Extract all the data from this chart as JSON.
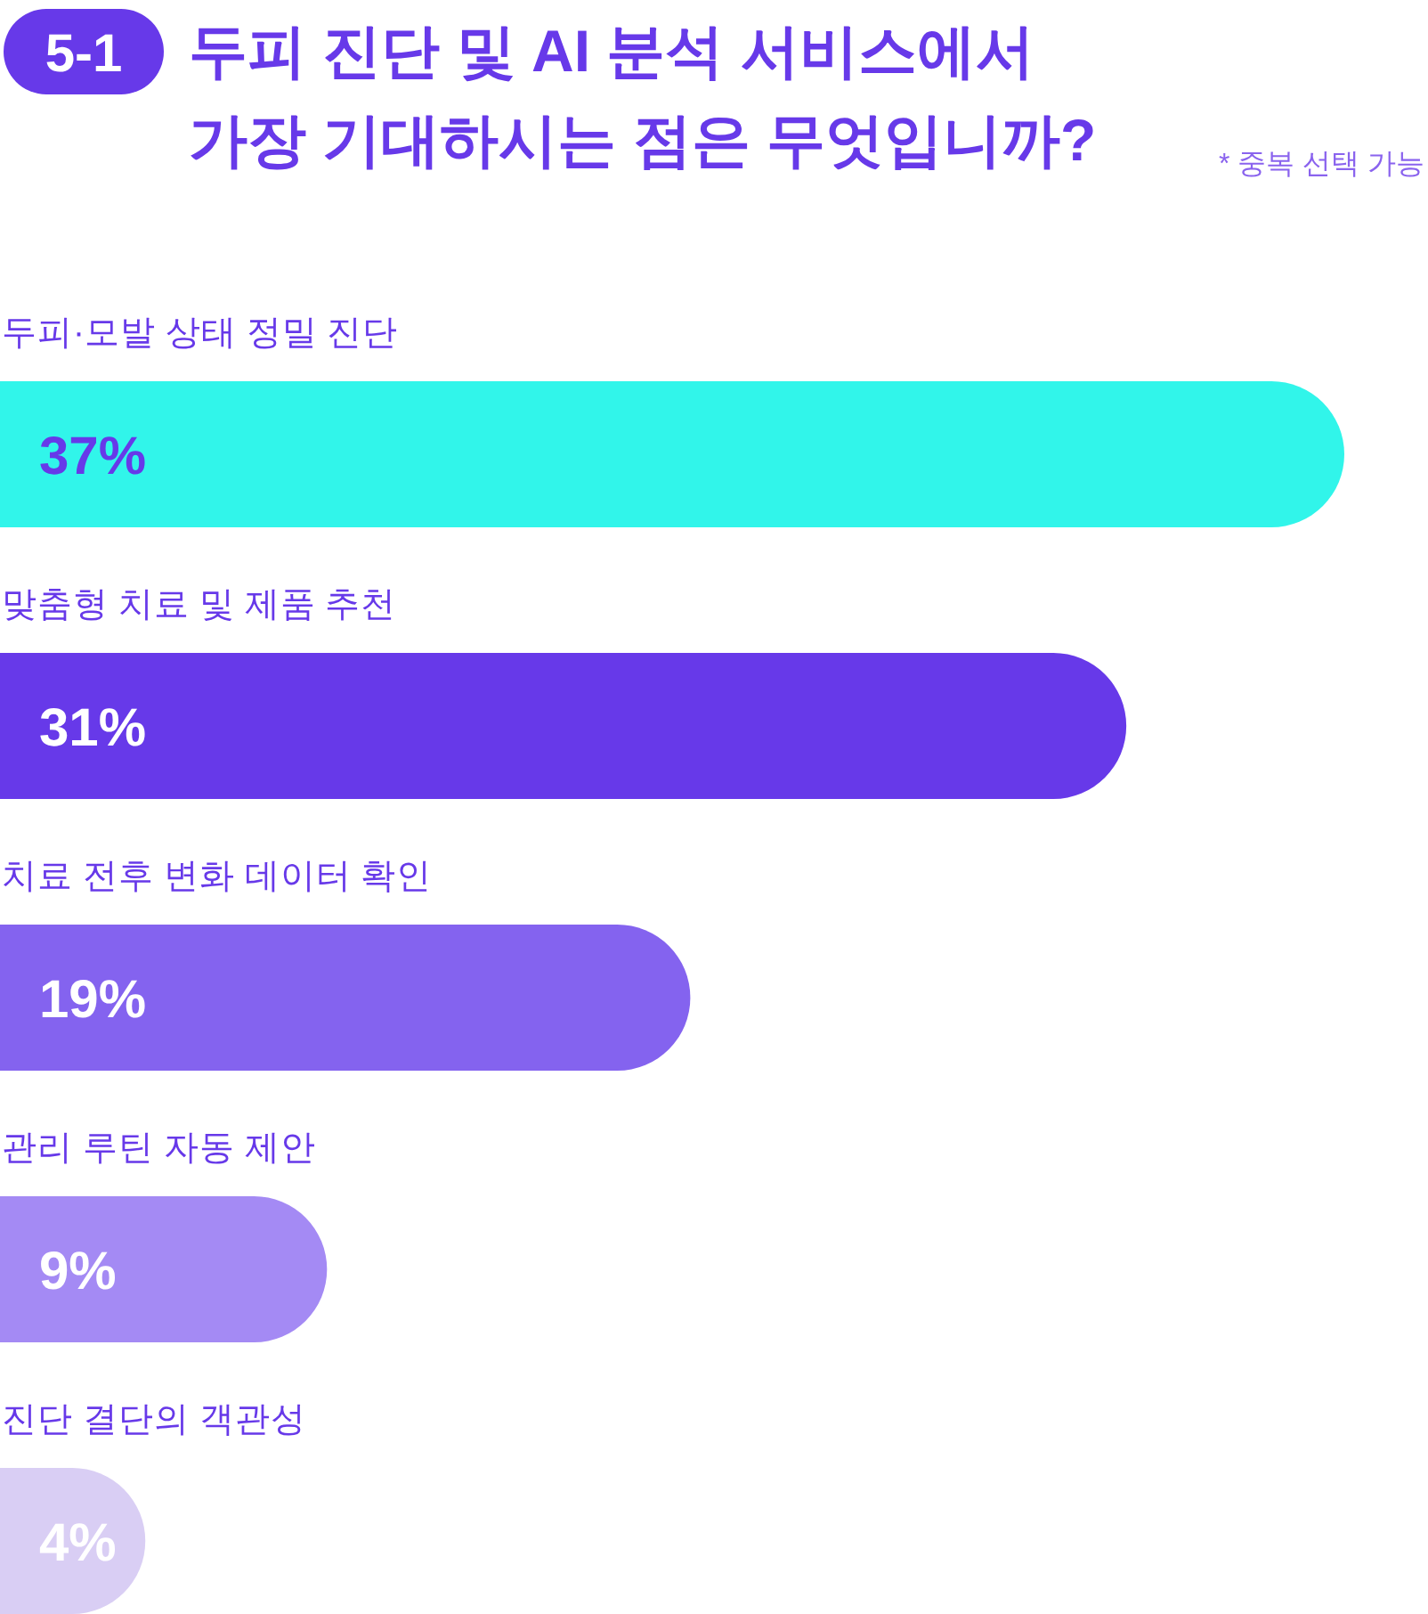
{
  "chart_data": {
    "type": "bar",
    "orientation": "horizontal",
    "title": "두피 진단 및 AI 분석 서비스에서 가장 기대하시는 점은 무엇입니까?",
    "subtitle": "* 중복 선택 가능",
    "annotations": [
      "5-1"
    ],
    "categories": [
      "두피·모발 상태 정밀 진단",
      "맞춤형 치료 및 제품 추천",
      "치료 전후 변화 데이터 확인",
      "관리 루틴 자동 제안",
      "진단 결단의 객관성"
    ],
    "values": [
      37,
      31,
      19,
      9,
      4
    ],
    "value_labels": [
      "37%",
      "31%",
      "19%",
      "9%",
      "4%"
    ],
    "colors": [
      "#31f5ea",
      "#6739e9",
      "#8463ef",
      "#a48af4",
      "#d9cef4"
    ]
  }
}
